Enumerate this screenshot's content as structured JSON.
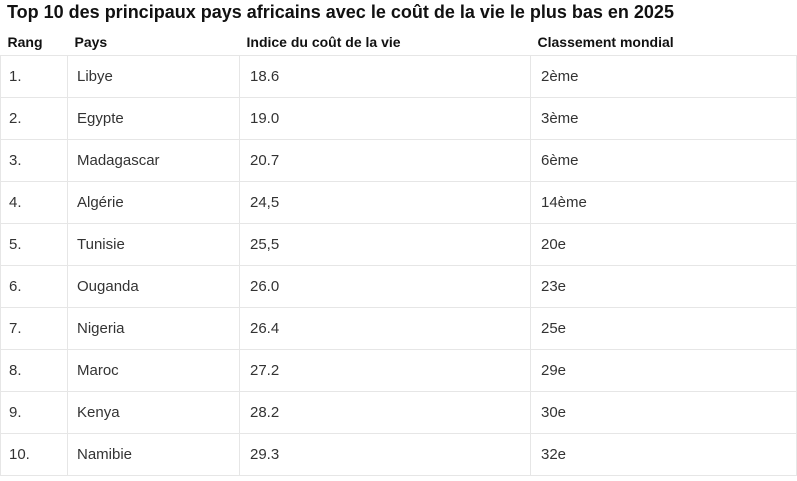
{
  "title": "Top 10 des principaux pays africains avec le coût de la vie le plus bas en 2025",
  "table": {
    "headers": [
      "Rang",
      "Pays",
      "Indice du coût de la vie",
      "Classement mondial"
    ],
    "rows": [
      [
        "1.",
        "Libye",
        "18.6",
        "2ème"
      ],
      [
        "2.",
        "Egypte",
        "19.0",
        "3ème"
      ],
      [
        "3.",
        "Madagascar",
        "20.7",
        "6ème"
      ],
      [
        "4.",
        "Algérie",
        "24,5",
        "14ème"
      ],
      [
        "5.",
        "Tunisie",
        "25,5",
        "20e"
      ],
      [
        "6.",
        "Ouganda",
        "26.0",
        "23e"
      ],
      [
        "7.",
        "Nigeria",
        "26.4",
        "25e"
      ],
      [
        "8.",
        "Maroc",
        "27.2",
        "29e"
      ],
      [
        "9.",
        "Kenya",
        "28.2",
        "30e"
      ],
      [
        "10.",
        "Namibie",
        "29.3",
        "32e"
      ]
    ]
  }
}
